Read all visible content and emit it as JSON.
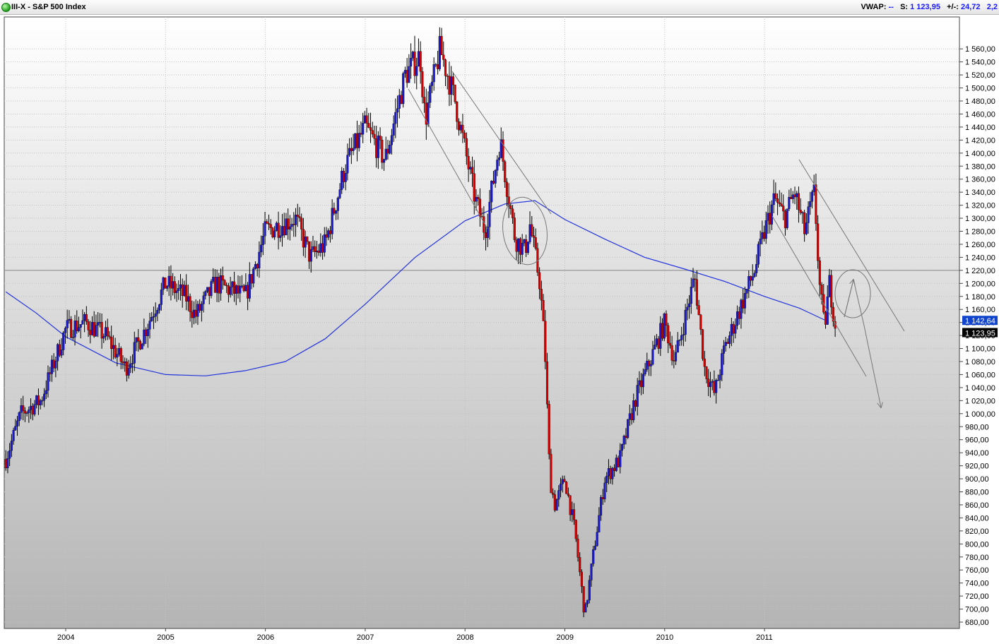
{
  "header": {
    "title": "III-X - S&P 500 Index",
    "vwap_label": "VWAP:",
    "vwap_value": "--",
    "last_label": "S:",
    "last_value": "1 123,95",
    "change_label": "+/-:",
    "change_value": "24,72",
    "extra_value": "2,2"
  },
  "colors": {
    "up_candle": "#1a1acc",
    "down_candle": "#d40000",
    "moving_average": "#2233dd",
    "trendline": "#777777",
    "price_tag_bg": "#1144cc",
    "last_tag_bg": "#000000"
  },
  "chart_data": {
    "type": "candlestick",
    "title": "S&P 500 Index",
    "timeframe": "weekly",
    "x_range": [
      "2003-05",
      "2011-09"
    ],
    "ylim": [
      660,
      1580
    ],
    "grid": true,
    "y_ticks": [
      "1 560,00",
      "1 540,00",
      "1 520,00",
      "1 500,00",
      "1 480,00",
      "1 460,00",
      "1 440,00",
      "1 420,00",
      "1 400,00",
      "1 380,00",
      "1 360,00",
      "1 340,00",
      "1 320,00",
      "1 300,00",
      "1 280,00",
      "1 260,00",
      "1 240,00",
      "1 220,00",
      "1 200,00",
      "1 180,00",
      "1 160,00",
      "1 140,00",
      "1 120,00",
      "1 100,00",
      "1 080,00",
      "1 060,00",
      "1 040,00",
      "1 020,00",
      "1 000,00",
      "980,00",
      "960,00",
      "940,00",
      "920,00",
      "900,00",
      "880,00",
      "860,00",
      "840,00",
      "820,00",
      "800,00",
      "780,00",
      "760,00",
      "740,00",
      "720,00",
      "700,00",
      "680,00"
    ],
    "x_ticks": [
      "2004",
      "2005",
      "2006",
      "2007",
      "2008",
      "2009",
      "2010",
      "2011"
    ],
    "price_path": [
      {
        "x": 2003.4,
        "y": 930
      },
      {
        "x": 2003.55,
        "y": 1000
      },
      {
        "x": 2003.75,
        "y": 1020
      },
      {
        "x": 2004.0,
        "y": 1130
      },
      {
        "x": 2004.2,
        "y": 1140
      },
      {
        "x": 2004.4,
        "y": 1120
      },
      {
        "x": 2004.6,
        "y": 1070
      },
      {
        "x": 2004.8,
        "y": 1130
      },
      {
        "x": 2005.0,
        "y": 1200
      },
      {
        "x": 2005.2,
        "y": 1180
      },
      {
        "x": 2005.3,
        "y": 1150
      },
      {
        "x": 2005.5,
        "y": 1200
      },
      {
        "x": 2005.8,
        "y": 1180
      },
      {
        "x": 2006.0,
        "y": 1280
      },
      {
        "x": 2006.3,
        "y": 1300
      },
      {
        "x": 2006.45,
        "y": 1240
      },
      {
        "x": 2006.6,
        "y": 1260
      },
      {
        "x": 2006.8,
        "y": 1380
      },
      {
        "x": 2007.0,
        "y": 1440
      },
      {
        "x": 2007.2,
        "y": 1390
      },
      {
        "x": 2007.4,
        "y": 1520
      },
      {
        "x": 2007.55,
        "y": 1550
      },
      {
        "x": 2007.6,
        "y": 1450
      },
      {
        "x": 2007.75,
        "y": 1560
      },
      {
        "x": 2007.9,
        "y": 1480
      },
      {
        "x": 2008.1,
        "y": 1330
      },
      {
        "x": 2008.2,
        "y": 1280
      },
      {
        "x": 2008.35,
        "y": 1420
      },
      {
        "x": 2008.5,
        "y": 1270
      },
      {
        "x": 2008.6,
        "y": 1250
      },
      {
        "x": 2008.65,
        "y": 1290
      },
      {
        "x": 2008.75,
        "y": 1200
      },
      {
        "x": 2008.8,
        "y": 1100
      },
      {
        "x": 2008.85,
        "y": 900
      },
      {
        "x": 2008.9,
        "y": 860
      },
      {
        "x": 2009.0,
        "y": 900
      },
      {
        "x": 2009.1,
        "y": 820
      },
      {
        "x": 2009.2,
        "y": 690
      },
      {
        "x": 2009.3,
        "y": 800
      },
      {
        "x": 2009.4,
        "y": 900
      },
      {
        "x": 2009.55,
        "y": 930
      },
      {
        "x": 2009.7,
        "y": 1020
      },
      {
        "x": 2009.9,
        "y": 1100
      },
      {
        "x": 2010.0,
        "y": 1140
      },
      {
        "x": 2010.1,
        "y": 1080
      },
      {
        "x": 2010.3,
        "y": 1210
      },
      {
        "x": 2010.4,
        "y": 1070
      },
      {
        "x": 2010.5,
        "y": 1030
      },
      {
        "x": 2010.6,
        "y": 1100
      },
      {
        "x": 2010.7,
        "y": 1140
      },
      {
        "x": 2010.9,
        "y": 1220
      },
      {
        "x": 2011.0,
        "y": 1280
      },
      {
        "x": 2011.1,
        "y": 1330
      },
      {
        "x": 2011.2,
        "y": 1300
      },
      {
        "x": 2011.3,
        "y": 1340
      },
      {
        "x": 2011.4,
        "y": 1280
      },
      {
        "x": 2011.5,
        "y": 1340
      },
      {
        "x": 2011.55,
        "y": 1200
      },
      {
        "x": 2011.6,
        "y": 1130
      },
      {
        "x": 2011.65,
        "y": 1200
      },
      {
        "x": 2011.72,
        "y": 1124
      }
    ],
    "moving_average": [
      {
        "x": 2003.4,
        "y": 1187
      },
      {
        "x": 2003.7,
        "y": 1155
      },
      {
        "x": 2004.0,
        "y": 1118
      },
      {
        "x": 2004.5,
        "y": 1078
      },
      {
        "x": 2005.0,
        "y": 1060
      },
      {
        "x": 2005.4,
        "y": 1058
      },
      {
        "x": 2005.8,
        "y": 1066
      },
      {
        "x": 2006.2,
        "y": 1080
      },
      {
        "x": 2006.6,
        "y": 1115
      },
      {
        "x": 2007.0,
        "y": 1168
      },
      {
        "x": 2007.5,
        "y": 1240
      },
      {
        "x": 2008.0,
        "y": 1296
      },
      {
        "x": 2008.4,
        "y": 1322
      },
      {
        "x": 2008.7,
        "y": 1327
      },
      {
        "x": 2009.0,
        "y": 1298
      },
      {
        "x": 2009.4,
        "y": 1268
      },
      {
        "x": 2009.8,
        "y": 1240
      },
      {
        "x": 2010.2,
        "y": 1222
      },
      {
        "x": 2010.6,
        "y": 1203
      },
      {
        "x": 2011.0,
        "y": 1180
      },
      {
        "x": 2011.35,
        "y": 1162
      },
      {
        "x": 2011.6,
        "y": 1144
      }
    ],
    "horizontal_line": 1220,
    "annotations": {
      "price_tag_ma": "1 142,64",
      "price_tag_last": "1 123,95"
    }
  }
}
